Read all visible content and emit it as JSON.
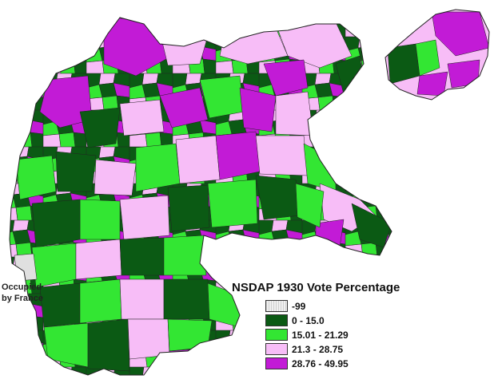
{
  "map": {
    "title": "NSDAP 1930 Vote Percentage",
    "occupied_label": [
      "Occupied",
      "by France"
    ],
    "legend": [
      {
        "label": "-99",
        "color": "#e0e0e0",
        "hatched": true
      },
      {
        "label": "0 - 15.0",
        "color": "#0b5a14"
      },
      {
        "label": "15.01 - 21.29",
        "color": "#33e633"
      },
      {
        "label": "21.3 - 28.75",
        "color": "#f7bdf7"
      },
      {
        "label": "28.76 - 49.95",
        "color": "#c21bd6"
      }
    ]
  }
}
